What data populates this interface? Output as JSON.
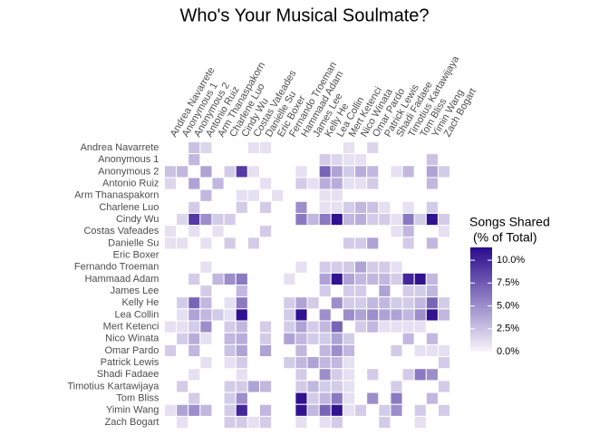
{
  "chart_data": {
    "type": "heatmap",
    "title": "Who's Your Musical Soulmate?",
    "legend_title": [
      "Songs Shared",
      "(% of Total)"
    ],
    "categories": [
      "Andrea Navarrete",
      "Anonymous 1",
      "Anonymous 2",
      "Antonio Ruiz",
      "Arm Thanaspakorn",
      "Charlene Luo",
      "Cindy Wu",
      "Costas Vafeades",
      "Danielle Su",
      "Eric Boxer",
      "Fernando Troeman",
      "Hammaad Adam",
      "James Lee",
      "Kelly He",
      "Lea Collin",
      "Mert Ketenci",
      "Nico Winata",
      "Omar Pardo",
      "Patrick Lewis",
      "Shadi Fadaee",
      "Timotius Kartawijaya",
      "Tom Bliss",
      "Yimin Wang",
      "Zach Bogart"
    ],
    "color_low": "#f7f5fc",
    "color_high": "#2a0a8c",
    "clim": [
      0,
      11.4
    ],
    "cticks": [
      {
        "value": 0,
        "label": "0.0%"
      },
      {
        "value": 2.5,
        "label": "2.5%"
      },
      {
        "value": 5,
        "label": "5.0%"
      },
      {
        "value": 7.5,
        "label": "7.5%"
      },
      {
        "value": 10,
        "label": "10.0%"
      }
    ],
    "z": [
      [
        null,
        null,
        2.5,
        1.5,
        null,
        null,
        null,
        1,
        1,
        null,
        null,
        null,
        null,
        null,
        null,
        1,
        null,
        1.5,
        null,
        null,
        null,
        null,
        null,
        null
      ],
      [
        null,
        null,
        3,
        null,
        null,
        null,
        null,
        null,
        null,
        null,
        null,
        null,
        null,
        2,
        1.5,
        1,
        1,
        null,
        null,
        null,
        null,
        null,
        2.5,
        null
      ],
      [
        2.5,
        3,
        null,
        4,
        null,
        2,
        9,
        1,
        null,
        null,
        null,
        1,
        null,
        7,
        4,
        2,
        3.5,
        3,
        null,
        1,
        3,
        null,
        4,
        2
      ],
      [
        1.5,
        null,
        4,
        null,
        3,
        null,
        null,
        null,
        1,
        null,
        null,
        2,
        1,
        3.5,
        3.5,
        1,
        1,
        2,
        null,
        null,
        null,
        null,
        3,
        null
      ],
      [
        null,
        null,
        null,
        3,
        null,
        null,
        1,
        1,
        null,
        1,
        null,
        null,
        null,
        1,
        1,
        null,
        null,
        null,
        null,
        null,
        null,
        null,
        null,
        null
      ],
      [
        null,
        null,
        2,
        null,
        null,
        null,
        2,
        null,
        2,
        null,
        null,
        5,
        null,
        1,
        1,
        2,
        3,
        2.5,
        1,
        null,
        1,
        null,
        2,
        null
      ],
      [
        null,
        1.5,
        9,
        5,
        2,
        2,
        null,
        null,
        null,
        null,
        null,
        6,
        3,
        6,
        11,
        3,
        3.5,
        2,
        2,
        1,
        6,
        2,
        11,
        2
      ],
      [
        1,
        null,
        1,
        null,
        1,
        null,
        null,
        null,
        2,
        null,
        null,
        null,
        null,
        null,
        null,
        null,
        null,
        null,
        null,
        1,
        3,
        null,
        null,
        1
      ],
      [
        1,
        1,
        null,
        1,
        null,
        2,
        null,
        2,
        null,
        null,
        null,
        null,
        null,
        null,
        null,
        2,
        2,
        4,
        null,
        null,
        2,
        null,
        3,
        null
      ],
      [
        null,
        null,
        null,
        null,
        null,
        null,
        null,
        null,
        null,
        null,
        null,
        null,
        null,
        null,
        null,
        null,
        null,
        null,
        null,
        null,
        null,
        null,
        null,
        null
      ],
      [
        null,
        null,
        null,
        1,
        null,
        null,
        null,
        null,
        null,
        null,
        null,
        1,
        null,
        2,
        2,
        2,
        4,
        2,
        2,
        1,
        null,
        null,
        null,
        null
      ],
      [
        null,
        null,
        2,
        null,
        3,
        5,
        6,
        null,
        null,
        null,
        1,
        null,
        null,
        4,
        11,
        4,
        3,
        3,
        3,
        2,
        10,
        11,
        3,
        null
      ],
      [
        null,
        null,
        null,
        2,
        null,
        null,
        3,
        null,
        null,
        null,
        null,
        null,
        null,
        2,
        null,
        2,
        2,
        null,
        4,
        null,
        2,
        2,
        3,
        null
      ],
      [
        null,
        2,
        7,
        3,
        null,
        1,
        6,
        null,
        null,
        null,
        2,
        4,
        2,
        null,
        5,
        2,
        2,
        3,
        3,
        2,
        2,
        3,
        7,
        2
      ],
      [
        null,
        1,
        4,
        3,
        2,
        1,
        11,
        null,
        null,
        null,
        2,
        11,
        null,
        5,
        null,
        5,
        4,
        5,
        4,
        4,
        3,
        5,
        11,
        3
      ],
      [
        1,
        1,
        2,
        5,
        null,
        2,
        3,
        null,
        2,
        null,
        2,
        4,
        2,
        3,
        7,
        null,
        2,
        3,
        1,
        1,
        1,
        1,
        null,
        null
      ],
      [
        null,
        2,
        3.5,
        1,
        null,
        3,
        3.5,
        null,
        2,
        null,
        4,
        3,
        2,
        2,
        4,
        2,
        null,
        null,
        null,
        null,
        3,
        null,
        3,
        null
      ],
      [
        2,
        null,
        3,
        null,
        null,
        2.5,
        4,
        null,
        4,
        null,
        null,
        3,
        null,
        3,
        5,
        3,
        null,
        null,
        null,
        2,
        null,
        1,
        1,
        1
      ],
      [
        null,
        null,
        null,
        1,
        null,
        1,
        2,
        null,
        null,
        null,
        2,
        3,
        4,
        3,
        3,
        1,
        null,
        null,
        null,
        null,
        null,
        null,
        null,
        2
      ],
      [
        null,
        null,
        1,
        null,
        null,
        null,
        1,
        null,
        null,
        null,
        null,
        2,
        null,
        5,
        2,
        1,
        null,
        2,
        null,
        null,
        2,
        6,
        5,
        null
      ],
      [
        null,
        2,
        null,
        null,
        null,
        2,
        2,
        4,
        3,
        null,
        null,
        2,
        3,
        2,
        2,
        1,
        null,
        null,
        null,
        2,
        null,
        null,
        null,
        2
      ],
      [
        null,
        null,
        2,
        null,
        null,
        2,
        5,
        null,
        null,
        null,
        null,
        11,
        2,
        3,
        6,
        1,
        null,
        5,
        null,
        6,
        null,
        null,
        3,
        null
      ],
      [
        1,
        4,
        5,
        3,
        null,
        2,
        10,
        null,
        3,
        null,
        null,
        11,
        3,
        7,
        11,
        1,
        2,
        null,
        2,
        5,
        null,
        2,
        null,
        2
      ],
      [
        null,
        1,
        null,
        null,
        null,
        2,
        2,
        1,
        2,
        null,
        null,
        1,
        null,
        1,
        2,
        null,
        null,
        null,
        2,
        null,
        null,
        1,
        null,
        null
      ]
    ]
  }
}
